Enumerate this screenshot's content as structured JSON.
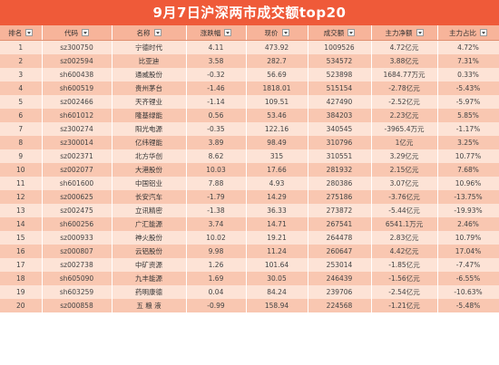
{
  "title": "9月7日沪深两市成交额top20",
  "headers": [
    "排名",
    "代码",
    "名称",
    "涨跌幅",
    "现价",
    "成交额",
    "主力净额",
    "主力占比"
  ],
  "rows": [
    [
      "1",
      "sz300750",
      "宁德时代",
      "4.11",
      "473.92",
      "1009526",
      "4.72亿元",
      "4.72%"
    ],
    [
      "2",
      "sz002594",
      "比亚迪",
      "3.58",
      "282.7",
      "534572",
      "3.88亿元",
      "7.31%"
    ],
    [
      "3",
      "sh600438",
      "通威股份",
      "-0.32",
      "56.69",
      "523898",
      "1684.77万元",
      "0.33%"
    ],
    [
      "4",
      "sh600519",
      "贵州茅台",
      "-1.46",
      "1818.01",
      "515154",
      "-2.78亿元",
      "-5.43%"
    ],
    [
      "5",
      "sz002466",
      "天齐锂业",
      "-1.14",
      "109.51",
      "427490",
      "-2.52亿元",
      "-5.97%"
    ],
    [
      "6",
      "sh601012",
      "隆基绿能",
      "0.56",
      "53.46",
      "384203",
      "2.23亿元",
      "5.85%"
    ],
    [
      "7",
      "sz300274",
      "阳光电源",
      "-0.35",
      "122.16",
      "340545",
      "-3965.4万元",
      "-1.17%"
    ],
    [
      "8",
      "sz300014",
      "亿纬锂能",
      "3.89",
      "98.49",
      "310796",
      "1亿元",
      "3.25%"
    ],
    [
      "9",
      "sz002371",
      "北方华创",
      "8.62",
      "315",
      "310551",
      "3.29亿元",
      "10.77%"
    ],
    [
      "10",
      "sz002077",
      "大港股份",
      "10.03",
      "17.66",
      "281932",
      "2.15亿元",
      "7.68%"
    ],
    [
      "11",
      "sh601600",
      "中国铝业",
      "7.88",
      "4.93",
      "280386",
      "3.07亿元",
      "10.96%"
    ],
    [
      "12",
      "sz000625",
      "长安汽车",
      "-1.79",
      "14.29",
      "275186",
      "-3.76亿元",
      "-13.75%"
    ],
    [
      "13",
      "sz002475",
      "立讯精密",
      "-1.38",
      "36.33",
      "273872",
      "-5.44亿元",
      "-19.93%"
    ],
    [
      "14",
      "sh600256",
      "广汇能源",
      "3.74",
      "14.71",
      "267541",
      "6541.1万元",
      "2.46%"
    ],
    [
      "15",
      "sz000933",
      "神火股份",
      "10.02",
      "19.21",
      "264478",
      "2.83亿元",
      "10.79%"
    ],
    [
      "16",
      "sz000807",
      "云铝股份",
      "9.98",
      "11.24",
      "260647",
      "4.42亿元",
      "17.04%"
    ],
    [
      "17",
      "sz002738",
      "中矿资源",
      "1.26",
      "101.64",
      "253014",
      "-1.85亿元",
      "-7.47%"
    ],
    [
      "18",
      "sh605090",
      "九丰能源",
      "1.69",
      "30.05",
      "246439",
      "-1.56亿元",
      "-6.55%"
    ],
    [
      "19",
      "sh603259",
      "药明康德",
      "0.04",
      "84.24",
      "239706",
      "-2.54亿元",
      "-10.63%"
    ],
    [
      "20",
      "sz000858",
      "五 粮 液",
      "-0.99",
      "158.94",
      "224568",
      "-1.21亿元",
      "-5.48%"
    ]
  ],
  "colors": {
    "title_bg": "#ef5a39",
    "header_bg": "#f7b49a",
    "row_light": "#fde3d6",
    "row_dark": "#f9c7b1"
  },
  "icons": {
    "filter": "filter-dropdown-icon"
  }
}
